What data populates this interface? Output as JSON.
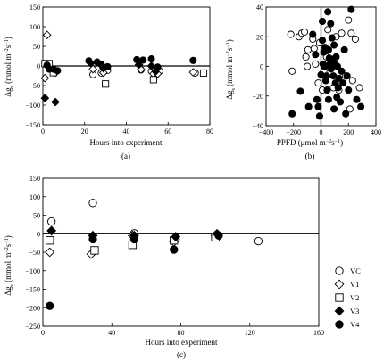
{
  "chart_data": [
    {
      "panel": "(a)",
      "type": "scatter",
      "xlabel": "Hours into experiment",
      "ylabel_main": "Δg",
      "ylabel_sub": "s",
      "ylabel_unit": " (mmol m",
      "ylabel_exp": "−2",
      "ylabel_unit2": "s",
      "ylabel_exp2": "−1",
      "ylabel_close": ")",
      "xlim": [
        0,
        80
      ],
      "ylim": [
        -150,
        150
      ],
      "xticks": [
        "0",
        "20",
        "40",
        "60",
        "80"
      ],
      "yticks": [
        "150",
        "100",
        "50",
        "0",
        "−50",
        "−100",
        "−150"
      ],
      "hline": 0,
      "series": [
        {
          "name": "VC",
          "marker": "circle-open",
          "points": [
            [
              1,
              5
            ],
            [
              3,
              2
            ],
            [
              6,
              -14
            ],
            [
              24,
              -22
            ],
            [
              28,
              -18
            ],
            [
              31,
              -11
            ],
            [
              47,
              -10
            ],
            [
              52,
              -13
            ],
            [
              56,
              -13
            ],
            [
              73,
              -18
            ]
          ]
        },
        {
          "name": "V1",
          "marker": "diamond-open",
          "points": [
            [
              1,
              -31
            ],
            [
              2,
              79
            ],
            [
              4,
              -5
            ],
            [
              6,
              -17
            ],
            [
              24,
              -8
            ],
            [
              29,
              -17
            ],
            [
              47,
              -9
            ],
            [
              53,
              -20
            ],
            [
              55,
              -20
            ],
            [
              72,
              -16
            ]
          ]
        },
        {
          "name": "V2",
          "marker": "square-open",
          "points": [
            [
              1,
              6
            ],
            [
              3,
              6
            ],
            [
              5,
              -17
            ],
            [
              30,
              -46
            ],
            [
              53,
              -35
            ],
            [
              77,
              -18
            ]
          ]
        },
        {
          "name": "V3",
          "marker": "diamond-filled",
          "points": [
            [
              1,
              -82
            ],
            [
              6,
              -92
            ],
            [
              23,
              7
            ],
            [
              29,
              -6
            ],
            [
              46,
              3
            ],
            [
              52,
              0
            ],
            [
              54,
              -14
            ]
          ]
        },
        {
          "name": "V4",
          "marker": "circle-filled",
          "points": [
            [
              2,
              2
            ],
            [
              3,
              -8
            ],
            [
              5,
              -8
            ],
            [
              7,
              -12
            ],
            [
              22,
              13
            ],
            [
              26,
              10
            ],
            [
              28,
              4
            ],
            [
              31,
              -2
            ],
            [
              45,
              16
            ],
            [
              48,
              15
            ],
            [
              52,
              18
            ],
            [
              55,
              -3
            ],
            [
              72,
              14
            ]
          ]
        }
      ]
    },
    {
      "panel": "(b)",
      "type": "scatter",
      "xlabel": "PPFD (μmol m",
      "xlabel_exp": "−2",
      "xlabel_unit2": "s",
      "xlabel_exp2": "−1",
      "xlabel_close": ")",
      "ylabel_main": "Δg",
      "ylabel_sub": "s",
      "ylabel_unit": " (mmol m",
      "ylabel_exp": "−2",
      "ylabel_unit2": "s",
      "ylabel_exp2": "−1",
      "ylabel_close": ")",
      "xlim": [
        -400,
        400
      ],
      "ylim": [
        -60,
        40
      ],
      "xticks": [
        "−400",
        "−200",
        "0",
        "200",
        "400"
      ],
      "yticks": [
        "40",
        "20",
        "0",
        "−20",
        "−40"
      ],
      "vline": 0,
      "series": [
        {
          "name": "open",
          "marker": "circle-open",
          "points": [
            [
              -220,
              17
            ],
            [
              -210,
              -14
            ],
            [
              -160,
              15
            ],
            [
              -140,
              18
            ],
            [
              -120,
              19
            ],
            [
              -110,
              -2
            ],
            [
              -100,
              -10
            ],
            [
              -95,
              4
            ],
            [
              -60,
              13
            ],
            [
              -50,
              5
            ],
            [
              -40,
              -8
            ],
            [
              -20,
              -24
            ],
            [
              -10,
              10
            ],
            [
              10,
              -30
            ],
            [
              20,
              -14
            ],
            [
              40,
              -2
            ],
            [
              50,
              21
            ],
            [
              70,
              -12
            ],
            [
              90,
              -28
            ],
            [
              110,
              15
            ],
            [
              130,
              -30
            ],
            [
              150,
              18
            ],
            [
              180,
              -18
            ],
            [
              200,
              29
            ],
            [
              210,
              -46
            ],
            [
              220,
              18
            ],
            [
              230,
              -22
            ],
            [
              250,
              13
            ],
            [
              280,
              -28
            ]
          ]
        },
        {
          "name": "filled",
          "marker": "circle-filled",
          "points": [
            [
              -210,
              -50
            ],
            [
              -150,
              -31
            ],
            [
              -90,
              -44
            ],
            [
              -60,
              17
            ],
            [
              -40,
              0
            ],
            [
              -20,
              -44
            ],
            [
              -10,
              -52
            ],
            [
              0,
              -17
            ],
            [
              10,
              28
            ],
            [
              10,
              12
            ],
            [
              15,
              -8
            ],
            [
              20,
              2
            ],
            [
              25,
              -10
            ],
            [
              30,
              6
            ],
            [
              35,
              -22
            ],
            [
              40,
              -18
            ],
            [
              45,
              -30
            ],
            [
              50,
              36
            ],
            [
              55,
              4
            ],
            [
              60,
              -3
            ],
            [
              65,
              -8
            ],
            [
              70,
              26
            ],
            [
              75,
              -12
            ],
            [
              80,
              14
            ],
            [
              85,
              -4
            ],
            [
              90,
              -18
            ],
            [
              95,
              8
            ],
            [
              100,
              -8
            ],
            [
              105,
              -24
            ],
            [
              110,
              -2
            ],
            [
              115,
              -36
            ],
            [
              120,
              -10
            ],
            [
              125,
              -28
            ],
            [
              130,
              -20
            ],
            [
              140,
              -40
            ],
            [
              150,
              -14
            ],
            [
              160,
              -24
            ],
            [
              170,
              4
            ],
            [
              180,
              -50
            ],
            [
              190,
              -18
            ],
            [
              200,
              -30
            ],
            [
              220,
              38
            ],
            [
              260,
              -38
            ],
            [
              290,
              -44
            ],
            [
              -30,
              -38
            ],
            [
              55,
              -38
            ],
            [
              95,
              -46
            ]
          ]
        }
      ]
    },
    {
      "panel": "(c)",
      "type": "scatter",
      "xlabel": "Hours into experiment",
      "ylabel_main": "Δg",
      "ylabel_sub": "s",
      "ylabel_unit": " (mmol m",
      "ylabel_exp": "−2",
      "ylabel_unit2": "s",
      "ylabel_exp2": "−1",
      "ylabel_close": ")",
      "xlim": [
        0,
        160
      ],
      "ylim": [
        -250,
        150
      ],
      "xticks": [
        "0",
        "40",
        "80",
        "120",
        "160"
      ],
      "yticks": [
        "150",
        "100",
        "50",
        "0",
        "−50",
        "−100",
        "−150",
        "−200",
        "−250"
      ],
      "hline": 0,
      "legend": {
        "position": "right",
        "entries": [
          {
            "name": "VC",
            "marker": "circle-open"
          },
          {
            "name": "V1",
            "marker": "diamond-open"
          },
          {
            "name": "V2",
            "marker": "square-open"
          },
          {
            "name": "V3",
            "marker": "diamond-filled"
          },
          {
            "name": "V4",
            "marker": "circle-filled"
          }
        ]
      },
      "series": [
        {
          "name": "VC",
          "marker": "circle-open",
          "points": [
            [
              5,
              33
            ],
            [
              29,
              83
            ],
            [
              53,
              1
            ],
            [
              77,
              -15
            ],
            [
              101,
              -8
            ],
            [
              125,
              -20
            ]
          ]
        },
        {
          "name": "V1",
          "marker": "diamond-open",
          "points": [
            [
              4,
              -50
            ],
            [
              28,
              -55
            ],
            [
              52,
              -5
            ],
            [
              76,
              -22
            ],
            [
              100,
              -5
            ]
          ]
        },
        {
          "name": "V2",
          "marker": "square-open",
          "points": [
            [
              4,
              -18
            ],
            [
              30,
              -45
            ],
            [
              52,
              -30
            ],
            [
              76,
              -18
            ],
            [
              100,
              -10
            ]
          ]
        },
        {
          "name": "V3",
          "marker": "diamond-filled",
          "points": [
            [
              5,
              8
            ],
            [
              29,
              -5
            ],
            [
              53,
              -5
            ],
            [
              77,
              -8
            ],
            [
              101,
              0
            ]
          ]
        },
        {
          "name": "V4",
          "marker": "circle-filled",
          "points": [
            [
              4,
              -195
            ],
            [
              29,
              -15
            ],
            [
              53,
              -15
            ],
            [
              76,
              -43
            ],
            [
              102,
              -5
            ]
          ]
        }
      ]
    }
  ]
}
